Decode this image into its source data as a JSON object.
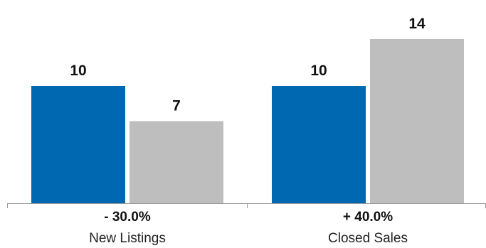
{
  "chart_data": {
    "type": "bar",
    "categories": [
      "New Listings",
      "Closed Sales"
    ],
    "series": [
      {
        "values": [
          10,
          10
        ],
        "color": "#0067b1"
      },
      {
        "values": [
          7,
          14
        ],
        "color": "#bebebe"
      }
    ],
    "changes": [
      "- 30.0%",
      "+ 40.0%"
    ],
    "ylim": [
      0,
      16
    ],
    "grid": false,
    "legend": "none"
  }
}
